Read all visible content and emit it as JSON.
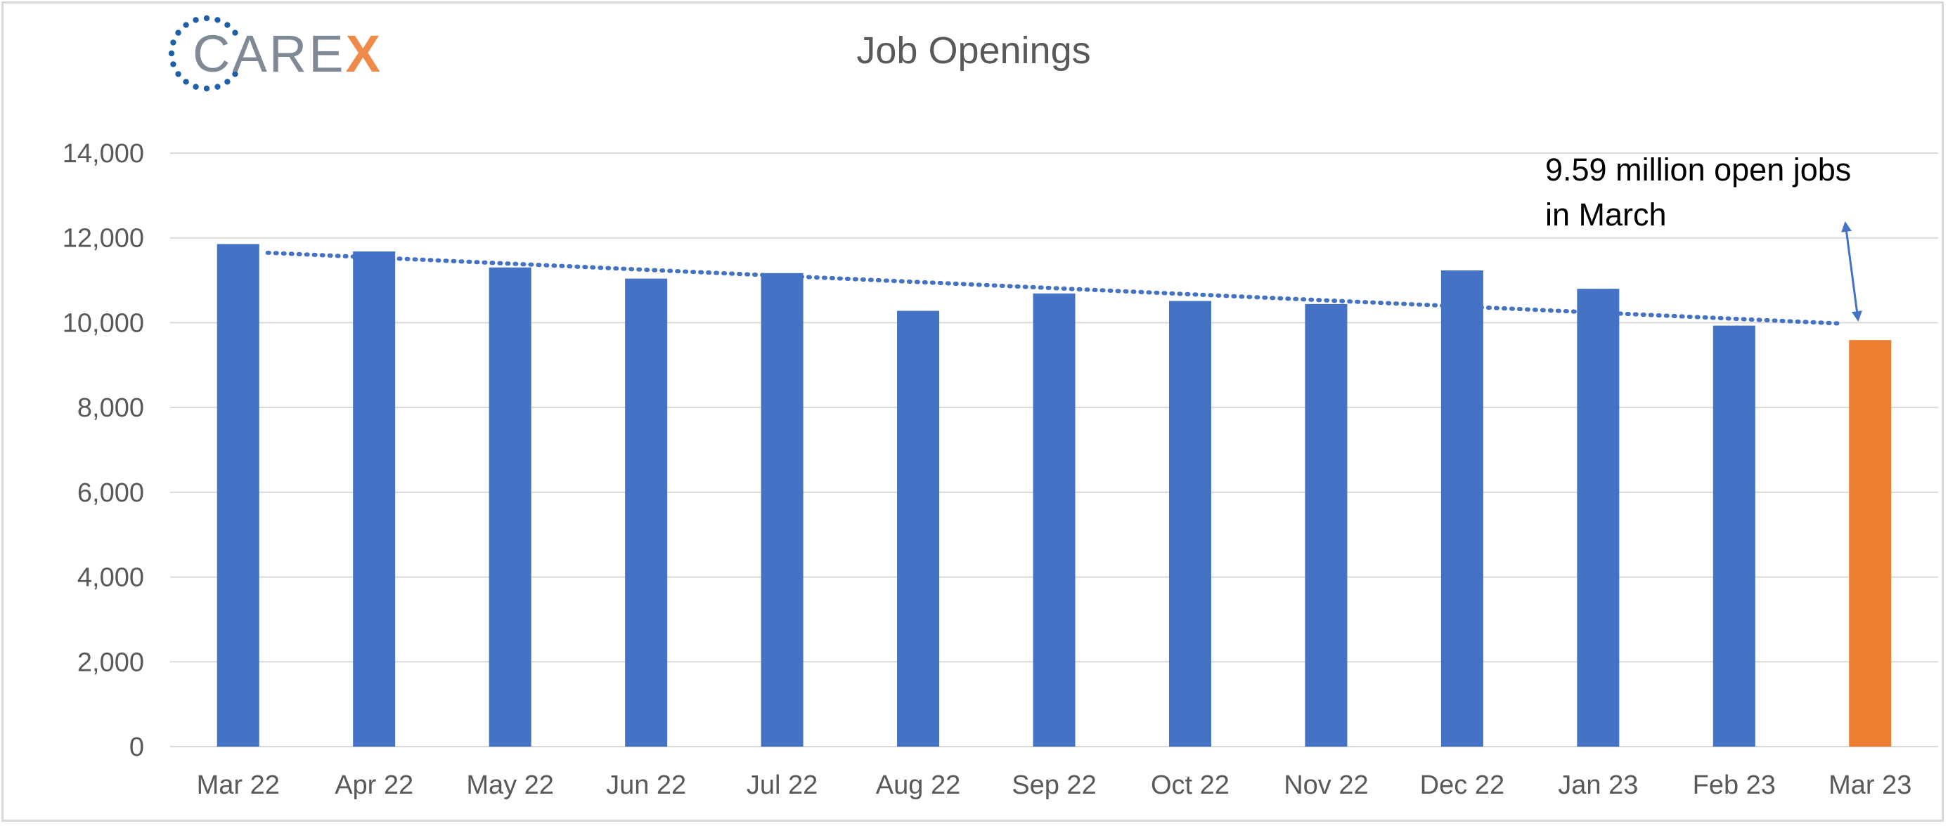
{
  "header": {
    "logo_text": "CARE",
    "logo_accent": "X"
  },
  "chart_data": {
    "type": "bar",
    "title": "Job Openings",
    "xlabel": "",
    "ylabel": "",
    "ylim": [
      0,
      14000
    ],
    "yticks": [
      0,
      2000,
      4000,
      6000,
      8000,
      10000,
      12000,
      14000
    ],
    "ytick_labels": [
      "0",
      "2,000",
      "4,000",
      "6,000",
      "8,000",
      "10,000",
      "12,000",
      "14,000"
    ],
    "categories": [
      "Mar 22",
      "Apr 22",
      "May 22",
      "Jun 22",
      "Jul 22",
      "Aug 22",
      "Sep 22",
      "Oct 22",
      "Nov 22",
      "Dec 22",
      "Jan 23",
      "Feb 23",
      "Mar 23"
    ],
    "values": [
      11855,
      11681,
      11303,
      11040,
      11170,
      10280,
      10690,
      10512,
      10440,
      11234,
      10800,
      9931,
      9590
    ],
    "highlight_index": 12,
    "trendline": {
      "type": "linear",
      "style": "dotted",
      "start": 11650,
      "end": 9980
    },
    "annotation": {
      "line1": "9.59 million open jobs",
      "line2": "in March"
    },
    "grid": true,
    "legend": "none"
  },
  "colors": {
    "bar": "#4472c4",
    "highlight": "#ed7d31",
    "trend": "#4472c4",
    "grid": "#d9d9d9",
    "logo_dots": "#1f5fa8"
  }
}
